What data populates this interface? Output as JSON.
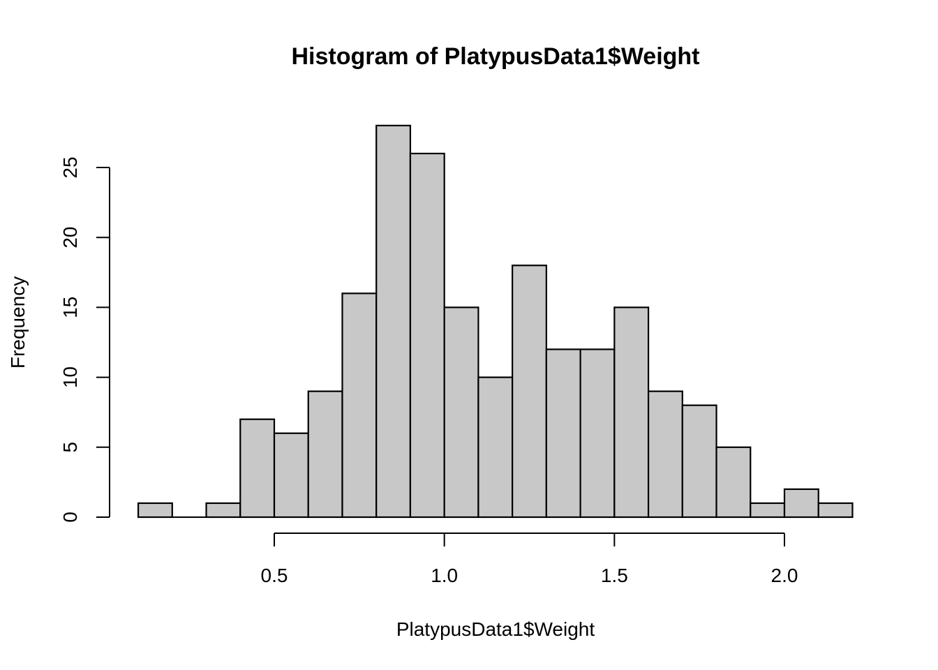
{
  "chart_data": {
    "type": "bar",
    "subtype": "histogram",
    "title": "Histogram of PlatypusData1$Weight",
    "xlabel": "PlatypusData1$Weight",
    "ylabel": "Frequency",
    "bin_edges": [
      0.1,
      0.2,
      0.3,
      0.4,
      0.5,
      0.6,
      0.7,
      0.8,
      0.9,
      1.0,
      1.1,
      1.2,
      1.3,
      1.4,
      1.5,
      1.6,
      1.7,
      1.8,
      1.9,
      2.0,
      2.1,
      2.2
    ],
    "categories": [
      "0.1-0.2",
      "0.2-0.3",
      "0.3-0.4",
      "0.4-0.5",
      "0.5-0.6",
      "0.6-0.7",
      "0.7-0.8",
      "0.8-0.9",
      "0.9-1.0",
      "1.0-1.1",
      "1.1-1.2",
      "1.2-1.3",
      "1.3-1.4",
      "1.4-1.5",
      "1.5-1.6",
      "1.6-1.7",
      "1.7-1.8",
      "1.8-1.9",
      "1.9-2.0",
      "2.0-2.1",
      "2.1-2.2"
    ],
    "values": [
      1,
      0,
      1,
      7,
      6,
      9,
      16,
      28,
      26,
      15,
      10,
      18,
      12,
      12,
      15,
      9,
      8,
      5,
      1,
      2,
      1
    ],
    "x_ticks": [
      0.5,
      1.0,
      1.5,
      2.0
    ],
    "x_tick_labels": [
      "0.5",
      "1.0",
      "1.5",
      "2.0"
    ],
    "y_ticks": [
      0,
      5,
      10,
      15,
      20,
      25
    ],
    "y_tick_labels": [
      "0",
      "5",
      "10",
      "15",
      "20",
      "25"
    ],
    "xlim": [
      0.1,
      2.2
    ],
    "ylim": [
      0,
      28
    ],
    "bar_color": "#c8c8c8",
    "edge_color": "#000000",
    "grid": false,
    "legend": null
  }
}
